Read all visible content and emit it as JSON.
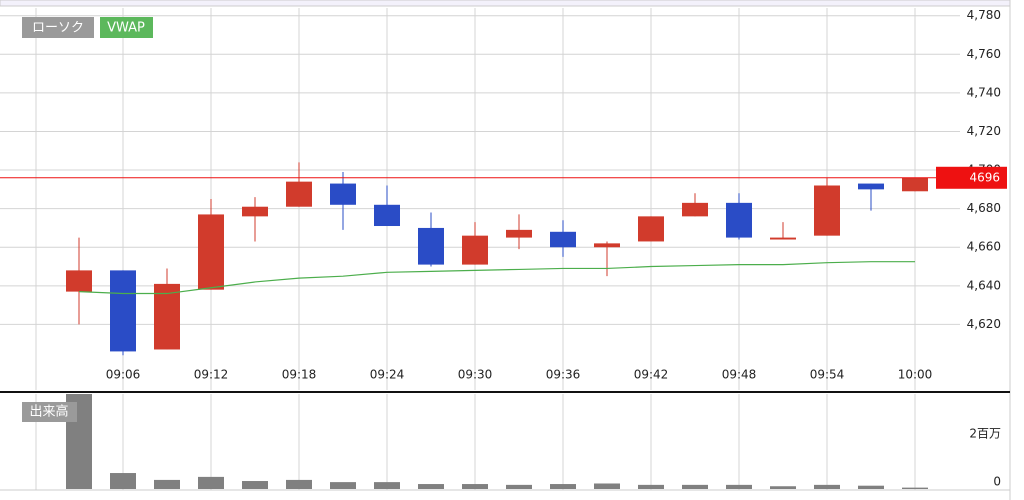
{
  "chart_data": [
    {
      "type": "candlestick",
      "categories": [
        null,
        "09:06",
        null,
        "09:12",
        null,
        "09:18",
        null,
        "09:24",
        null,
        "09:30",
        null,
        "09:36",
        null,
        "09:42",
        null,
        "09:48",
        null,
        "09:54",
        null,
        "10:00"
      ],
      "series": [
        {
          "name": "ローソク",
          "color": "#999999",
          "up_color": "#d13b2c",
          "down_color": "#2a4cc6",
          "open": [
            4637,
            4648,
            4607,
            4638,
            4676,
            4681,
            4693,
            4682,
            4670,
            4651,
            4665,
            4668,
            4660,
            4663,
            4676,
            4683,
            4664,
            4666,
            4693,
            4689
          ],
          "high": [
            4665,
            4648,
            4649,
            4685,
            4686,
            4704,
            4699,
            4692,
            4678,
            4673,
            4677,
            4674,
            4663,
            4676,
            4688,
            4688,
            4673,
            4696,
            4693,
            4696
          ],
          "low": [
            4620,
            4604,
            4607,
            4638,
            4663,
            4681,
            4669,
            4671,
            4650,
            4651,
            4659,
            4655,
            4645,
            4663,
            4676,
            4664,
            4664,
            4666,
            4679,
            4689
          ],
          "close": [
            4648,
            4606,
            4641,
            4677,
            4681,
            4694,
            4682,
            4671,
            4651,
            4666,
            4669,
            4660,
            4662,
            4676,
            4683,
            4665,
            4665,
            4692,
            4690,
            4696
          ]
        },
        {
          "name": "VWAP",
          "type": "line",
          "color": "#4cae4c",
          "values": [
            4637,
            4636,
            4636,
            4639,
            4642,
            4644,
            4645,
            4647,
            4647.5,
            4648,
            4648.5,
            4649,
            4649,
            4650,
            4650.5,
            4651,
            4651,
            4652,
            4652.5,
            4652.5
          ]
        }
      ],
      "last_price": 4696,
      "last_price_color": "#ee1111",
      "ylim": [
        4586,
        4784
      ],
      "yticks": [
        {
          "value": 4620,
          "label": "4,620"
        },
        {
          "value": 4640,
          "label": "4,640"
        },
        {
          "value": 4660,
          "label": "4,660"
        },
        {
          "value": 4680,
          "label": "4,680"
        },
        {
          "value": 4700,
          "label": "4,700"
        },
        {
          "value": 4720,
          "label": "4,720"
        },
        {
          "value": 4740,
          "label": "4,740"
        },
        {
          "value": 4760,
          "label": "4,760"
        },
        {
          "value": 4780,
          "label": "4,780"
        }
      ],
      "grid": true
    },
    {
      "type": "bar",
      "series": [
        {
          "name": "出来高",
          "color": "#808080",
          "values": [
            3450000,
            580000,
            330000,
            440000,
            290000,
            330000,
            250000,
            250000,
            180000,
            180000,
            150000,
            180000,
            200000,
            150000,
            150000,
            150000,
            100000,
            150000,
            120000,
            50000
          ]
        }
      ],
      "ylim": [
        0,
        3450000
      ],
      "yticks": [
        0,
        {
          "value": 2000000,
          "label": "2百万"
        }
      ]
    }
  ]
}
